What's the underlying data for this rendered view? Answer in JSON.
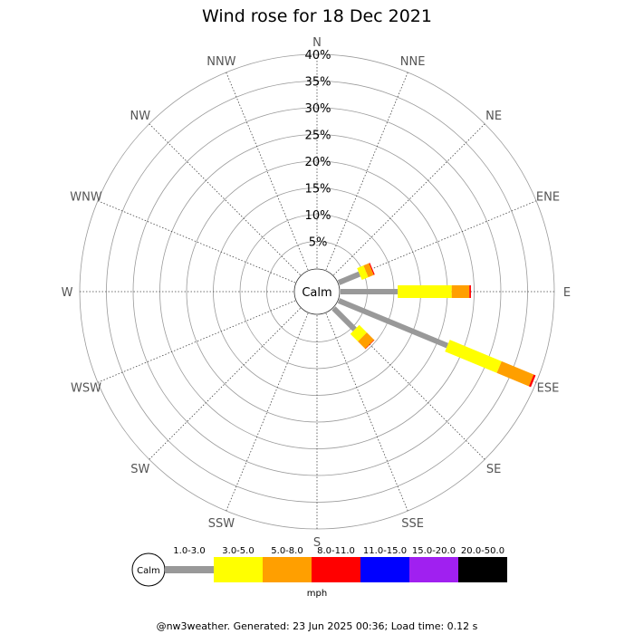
{
  "title": "Wind rose for 18 Dec 2021",
  "footer": "@nw3weather. Generated: 23 Jun 2025 00:36; Load time: 0.12 s",
  "chart_data": {
    "type": "wind-rose",
    "title": "Wind rose for 18 Dec 2021",
    "calm_label": "Calm",
    "unit_label": "mph",
    "directions": [
      "N",
      "NNE",
      "NE",
      "ENE",
      "E",
      "ESE",
      "SE",
      "SSE",
      "S",
      "SSW",
      "SW",
      "WSW",
      "W",
      "WNW",
      "NW",
      "NNW"
    ],
    "ring_values": [
      5,
      10,
      15,
      20,
      25,
      30,
      35,
      40
    ],
    "ring_labels": [
      "5%",
      "10%",
      "15%",
      "20%",
      "25%",
      "30%",
      "35%",
      "40%"
    ],
    "max_percent": 40,
    "calm_percent": 4,
    "speed_bins": [
      {
        "label": "1.0-3.0",
        "color": "#999999"
      },
      {
        "label": "3.0-5.0",
        "color": "#ffff00"
      },
      {
        "label": "5.0-8.0",
        "color": "#ff9f00"
      },
      {
        "label": "8.0-11.0",
        "color": "#ff0000"
      },
      {
        "label": "11.0-15.0",
        "color": "#0000ff"
      },
      {
        "label": "15.0-20.0",
        "color": "#a020f0"
      },
      {
        "label": "20.0-50.0",
        "color": "#000000"
      }
    ],
    "series": [
      {
        "direction": "ENE",
        "cumulative": [
          4.2,
          5.5,
          6.6,
          6.8
        ]
      },
      {
        "direction": "E",
        "cumulative": [
          10.7,
          20.8,
          24.1,
          24.4
        ]
      },
      {
        "direction": "ESE",
        "cumulative": [
          22.0,
          32.5,
          39.0,
          39.4
        ]
      },
      {
        "direction": "SE",
        "cumulative": [
          5.6,
          7.6,
          9.6,
          9.6
        ]
      }
    ]
  }
}
